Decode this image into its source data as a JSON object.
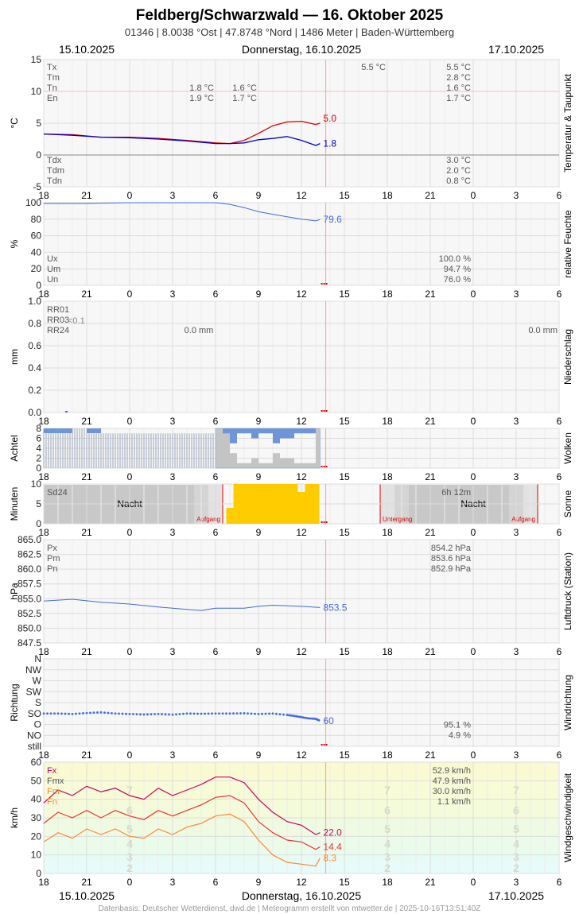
{
  "header": {
    "title": "Feldberg/Schwarzwald  —  16. Oktober 2025",
    "subtitle": "01346  |  8.0038 °Ost  |  47.8748 °Nord  |  1486 Meter  |  Baden-Württemberg",
    "date_left": "15.10.2025",
    "date_center": "Donnerstag, 16.10.2025",
    "date_right": "17.10.2025"
  },
  "footer": {
    "date_left": "15.10.2025",
    "date_center": "Donnerstag, 16.10.2025",
    "date_right": "17.10.2025",
    "credits": "Datenbasis: Deutscher Wetterdienst, dwd.de | Meteogramm erstellt von mtwetter.de | 2025-10-16T13:51:40Z"
  },
  "colors": {
    "temperature": "#dd0000",
    "dewpoint": "#0000cc",
    "humidity": "#4169e1",
    "clouds": "#6f95d9",
    "sun": "#ffcc00",
    "pressure": "#4169e1",
    "gust": "#cc0066",
    "wind_mean": "#ee3333",
    "wind_min": "#ff8833",
    "now_line": "#ff9999"
  },
  "chart_data": [
    {
      "id": "temperature",
      "type": "line",
      "ylabel": "°C",
      "side_label": "Temperatur & Taupunkt",
      "ylim": [
        -5,
        15
      ],
      "yticks": [
        -5,
        0,
        5,
        10,
        15
      ],
      "x_ticks": [
        "18",
        "21",
        "0",
        "3",
        "6",
        "9",
        "12",
        "15",
        "18",
        "21",
        "0",
        "3",
        "6"
      ],
      "series": [
        {
          "role": "temperature",
          "x": [
            18,
            20,
            22,
            24,
            26,
            28,
            30,
            31,
            32,
            33,
            34,
            35,
            36,
            37,
            37.3
          ],
          "values": [
            3.3,
            3.2,
            2.8,
            2.8,
            2.6,
            2.3,
            1.9,
            1.8,
            2.3,
            3.4,
            4.6,
            5.2,
            5.3,
            4.8,
            5.0
          ],
          "end_label": "5.0"
        },
        {
          "role": "dewpoint",
          "x": [
            18,
            20,
            22,
            24,
            26,
            28,
            30,
            31,
            32,
            33,
            34,
            35,
            36,
            37,
            37.3
          ],
          "values": [
            3.3,
            3.1,
            2.8,
            2.7,
            2.5,
            2.2,
            1.8,
            1.8,
            1.9,
            2.4,
            2.6,
            2.9,
            2.3,
            1.5,
            1.8
          ],
          "end_label": "1.8"
        }
      ],
      "stats_top": [
        {
          "label": "Tx",
          "value2": "5.5 °C",
          "value3": "5.5 °C"
        },
        {
          "label": "Tm",
          "value3": "2.8 °C"
        },
        {
          "label": "Tn",
          "value1": "1.8 °C",
          "value2": "1.6 °C",
          "value3": "1.6 °C"
        },
        {
          "label": "En",
          "value1": "1.9 °C",
          "value2": "1.7 °C",
          "value3": "1.7 °C"
        }
      ],
      "stats_bottom": [
        {
          "label": "Tdx",
          "value": "3.0 °C"
        },
        {
          "label": "Tdm",
          "value": "2.0 °C"
        },
        {
          "label": "Tdn",
          "value": "0.8 °C"
        }
      ]
    },
    {
      "id": "humidity",
      "type": "line",
      "ylabel": "%",
      "side_label": "relative Feuchte",
      "ylim": [
        0,
        100
      ],
      "yticks": [
        0,
        20,
        40,
        60,
        80,
        100
      ],
      "x_ticks": [
        "18",
        "21",
        "0",
        "3",
        "6",
        "9",
        "12",
        "15",
        "18",
        "21",
        "0",
        "3",
        "6"
      ],
      "series": [
        {
          "role": "humidity",
          "x": [
            18,
            21,
            24,
            27,
            30,
            31,
            32,
            33,
            34,
            35,
            36,
            37,
            37.3
          ],
          "values": [
            99,
            99,
            100,
            100,
            100,
            98,
            94,
            89,
            86,
            83,
            80,
            78,
            79.6
          ],
          "end_label": "79.6"
        }
      ],
      "stats": [
        {
          "label": "Ux",
          "value": "100.0 %"
        },
        {
          "label": "Um",
          "value": "94.7 %"
        },
        {
          "label": "Un",
          "value": "76.0 %"
        }
      ]
    },
    {
      "id": "precipitation",
      "type": "bar",
      "ylabel": "mm",
      "side_label": "Niederschlag",
      "ylim": [
        0,
        1.0
      ],
      "yticks": [
        "0.0",
        "0.2",
        "0.4",
        "0.6",
        "0.8",
        "1.0"
      ],
      "x_ticks": [
        "18",
        "21",
        "0",
        "3",
        "6",
        "9",
        "12",
        "15",
        "18",
        "21",
        "0",
        "3",
        "6"
      ],
      "stats": [
        {
          "label": "RR01"
        },
        {
          "label": "RR03",
          "value": "<0.1"
        },
        {
          "label": "RR24",
          "value1": "0.0 mm",
          "value2": "0.0 mm"
        }
      ]
    },
    {
      "id": "clouds",
      "type": "bar",
      "ylabel": "Achtel",
      "side_label": "Wolken",
      "ylim": [
        0,
        8
      ],
      "yticks": [
        0,
        2,
        4,
        6,
        8
      ],
      "x_ticks": [
        "18",
        "21",
        "0",
        "3",
        "6",
        "9",
        "12",
        "15",
        "18",
        "21",
        "0",
        "3",
        "6"
      ],
      "series": [
        {
          "role": "clouds",
          "x": [
            18,
            19,
            20,
            21,
            22,
            23,
            24,
            25,
            26,
            27,
            28,
            29,
            30,
            30.5,
            31,
            31.5,
            32,
            32.5,
            33,
            33.5,
            34,
            34.5,
            35,
            35.5,
            36,
            36.5,
            37,
            37.3
          ],
          "values": [
            8,
            8,
            8,
            7,
            7,
            7,
            7,
            7,
            7,
            7,
            7,
            7,
            8,
            7,
            3,
            1,
            1,
            2,
            1,
            1,
            3,
            2,
            2,
            1,
            1,
            1,
            8,
            8
          ]
        }
      ]
    },
    {
      "id": "sunshine",
      "type": "bar",
      "ylabel": "Minuten",
      "side_label": "Sonne",
      "ylim": [
        0,
        10
      ],
      "yticks": [
        0,
        5,
        10
      ],
      "x_ticks": [
        "18",
        "21",
        "0",
        "3",
        "6",
        "9",
        "12",
        "15",
        "18",
        "21",
        "0",
        "3",
        "6"
      ],
      "night_label_1": "Nacht",
      "night_label_2": "Nacht",
      "sunrise_label": "Aufgang",
      "sunset_label": "Untergang",
      "sunrise_label_2": "Aufgang",
      "stats": [
        {
          "label": "Sd24",
          "value": "6h 12m"
        }
      ],
      "series": [
        {
          "role": "sun",
          "x": [
            31,
            31.5,
            32,
            32.5,
            33,
            33.5,
            34,
            34.5,
            35,
            35.5,
            36,
            36.5,
            37
          ],
          "values": [
            4,
            10,
            10,
            10,
            10,
            10,
            10,
            10,
            10,
            10,
            8,
            10,
            10
          ]
        }
      ]
    },
    {
      "id": "pressure",
      "type": "line",
      "ylabel": "hPa",
      "side_label": "Luftdruck (Station)",
      "ylim": [
        847.5,
        865.0
      ],
      "yticks": [
        "847.5",
        "850.0",
        "852.5",
        "855.0",
        "857.5",
        "860.0",
        "862.5",
        "865.0"
      ],
      "x_ticks": [
        "18",
        "21",
        "0",
        "3",
        "6",
        "9",
        "12",
        "15",
        "18",
        "21",
        "0",
        "3",
        "6"
      ],
      "series": [
        {
          "role": "pressure",
          "x": [
            18,
            20,
            22,
            24,
            26,
            28,
            29,
            30,
            32,
            33,
            34,
            36,
            37.3
          ],
          "values": [
            854.6,
            854.9,
            854.4,
            854.1,
            853.6,
            853.2,
            853.0,
            853.4,
            853.4,
            853.7,
            853.9,
            853.7,
            853.5
          ],
          "end_label": "853.5"
        }
      ],
      "stats": [
        {
          "label": "Px",
          "value": "854.2 hPa"
        },
        {
          "label": "Pm",
          "value": "853.6 hPa"
        },
        {
          "label": "Pn",
          "value": "852.9 hPa"
        }
      ]
    },
    {
      "id": "wind_direction",
      "type": "scatter",
      "ylabel": "Richtung",
      "side_label": "Windrichtung",
      "ycats": [
        "still",
        "NO",
        "O",
        "SO",
        "S",
        "SW",
        "W",
        "NW",
        "N"
      ],
      "x_ticks": [
        "18",
        "21",
        "0",
        "3",
        "6",
        "9",
        "12",
        "15",
        "18",
        "21",
        "0",
        "3",
        "6"
      ],
      "series": [
        {
          "role": "direction",
          "x": [
            18,
            19,
            20,
            21,
            22,
            23,
            24,
            25,
            26,
            27,
            28,
            29,
            30,
            31,
            32,
            33,
            34,
            35,
            35.5,
            36,
            36.5,
            37,
            37.3
          ],
          "values": [
            90,
            90,
            88,
            92,
            95,
            90,
            88,
            86,
            88,
            85,
            90,
            89,
            90,
            90,
            91,
            88,
            90,
            84,
            80,
            75,
            70,
            68,
            60
          ],
          "end_label": "60"
        }
      ],
      "stats": [
        {
          "value": "95.1 %"
        },
        {
          "value": "4.9 %"
        }
      ]
    },
    {
      "id": "wind_speed",
      "type": "line",
      "ylabel": "km/h",
      "side_label": "Windgeschwindigkeit",
      "ylim": [
        0,
        60
      ],
      "yticks": [
        0,
        10,
        20,
        30,
        40,
        50,
        60
      ],
      "x_ticks": [
        "18",
        "21",
        "0",
        "3",
        "6",
        "9",
        "12",
        "15",
        "18",
        "21",
        "0",
        "3",
        "6"
      ],
      "bft_labels": [
        "2",
        "3",
        "4",
        "5",
        "6",
        "7"
      ],
      "series": [
        {
          "role": "gust",
          "x": [
            18,
            19,
            20,
            21,
            22,
            23,
            24,
            25,
            26,
            27,
            28,
            29,
            30,
            31,
            32,
            33,
            34,
            35,
            36,
            37,
            37.3
          ],
          "values": [
            38,
            45,
            42,
            47,
            44,
            46,
            42,
            40,
            46,
            42,
            45,
            48,
            52,
            52,
            49,
            40,
            33,
            28,
            26,
            21,
            22.0
          ],
          "end_label": "22.0"
        },
        {
          "role": "wind_mean",
          "x": [
            18,
            19,
            20,
            21,
            22,
            23,
            24,
            25,
            26,
            27,
            28,
            29,
            30,
            31,
            32,
            33,
            34,
            35,
            36,
            37,
            37.3
          ],
          "values": [
            27,
            33,
            30,
            34,
            30,
            34,
            31,
            29,
            34,
            31,
            34,
            37,
            41,
            42,
            38,
            28,
            22,
            18,
            17,
            13,
            14.4
          ],
          "end_label": "14.4"
        },
        {
          "role": "wind_min",
          "x": [
            18,
            19,
            20,
            21,
            22,
            23,
            24,
            25,
            26,
            27,
            28,
            29,
            30,
            31,
            32,
            33,
            34,
            35,
            36,
            37,
            37.3
          ],
          "values": [
            17,
            22,
            19,
            24,
            21,
            24,
            20,
            19,
            24,
            21,
            25,
            27,
            31,
            32,
            28,
            18,
            10,
            6,
            5,
            4,
            8.3
          ],
          "end_label": "8.3"
        }
      ],
      "stats": [
        {
          "label": "Fx",
          "value": "52.9 km/h"
        },
        {
          "label": "Fmx",
          "value": "47.9 km/h"
        },
        {
          "label": "Fm",
          "value": "30.0 km/h"
        },
        {
          "label": "Fn",
          "value": "1.1 km/h"
        }
      ]
    }
  ]
}
